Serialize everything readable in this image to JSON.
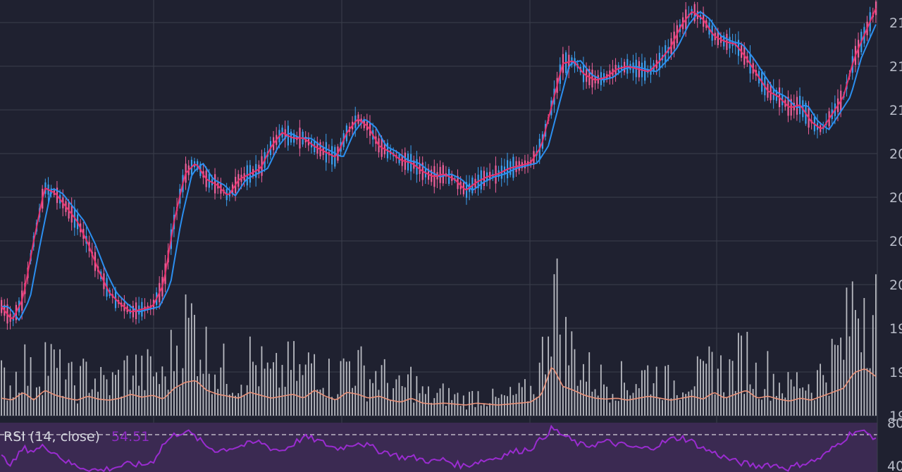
{
  "colors": {
    "background": "#1f2130",
    "grid": "#3b3e4c",
    "candle_up": "#3aa0f0",
    "candle_down": "#f0609a",
    "ma_fast": "#e8326e",
    "ma_slow": "#2b8ff0",
    "volume": "#b9bbc2",
    "volume_ma": "#e8927a",
    "rsi_line": "#9a2cd0",
    "rsi_band": "#3b2a52",
    "rsi_threshold": "#ffffff"
  },
  "price_axis": {
    "ticks": [
      "21",
      "21",
      "21",
      "20",
      "20",
      "20",
      "20",
      "19",
      "19",
      "19"
    ]
  },
  "rsi": {
    "title": "RSI (14, close)",
    "value": "54.51",
    "axis_ticks": [
      "80",
      "40"
    ]
  },
  "chart_data": [
    {
      "type": "line",
      "title": "",
      "series": [
        {
          "values": [
            0.14,
            0.09,
            0.17,
            0.38,
            0.57,
            0.55,
            0.5,
            0.45,
            0.37,
            0.27,
            0.19,
            0.15,
            0.12,
            0.13,
            0.14,
            0.22,
            0.45,
            0.62,
            0.66,
            0.6,
            0.58,
            0.54,
            0.6,
            0.62,
            0.64,
            0.72,
            0.77,
            0.75,
            0.75,
            0.72,
            0.7,
            0.68,
            0.77,
            0.82,
            0.79,
            0.72,
            0.7,
            0.67,
            0.66,
            0.63,
            0.61,
            0.62,
            0.6,
            0.56,
            0.59,
            0.61,
            0.62,
            0.64,
            0.65,
            0.66,
            0.72,
            0.87,
            1.02,
            1.03,
            0.98,
            0.96,
            0.97,
            1.0,
            1.01,
            1.0,
            0.99,
            1.03,
            1.08,
            1.16,
            1.21,
            1.18,
            1.12,
            1.1,
            1.09,
            1.04,
            0.98,
            0.92,
            0.9,
            0.86,
            0.87,
            0.81,
            0.78,
            0.84,
            0.9,
            1.04,
            1.13,
            1.22
          ]
        }
      ]
    },
    {
      "type": "bar",
      "title": "",
      "values": [
        0.12,
        0.1,
        0.18,
        0.1,
        0.2,
        0.15,
        0.12,
        0.1,
        0.14,
        0.11,
        0.1,
        0.12,
        0.16,
        0.13,
        0.15,
        0.11,
        0.22,
        0.28,
        0.3,
        0.2,
        0.16,
        0.14,
        0.12,
        0.18,
        0.15,
        0.12,
        0.14,
        0.16,
        0.12,
        0.2,
        0.14,
        0.1,
        0.18,
        0.16,
        0.12,
        0.14,
        0.1,
        0.08,
        0.12,
        0.07,
        0.06,
        0.07,
        0.06,
        0.05,
        0.07,
        0.06,
        0.05,
        0.06,
        0.07,
        0.08,
        0.15,
        0.45,
        0.24,
        0.2,
        0.15,
        0.12,
        0.11,
        0.12,
        0.1,
        0.12,
        0.14,
        0.12,
        0.1,
        0.12,
        0.14,
        0.11,
        0.18,
        0.12,
        0.16,
        0.2,
        0.12,
        0.14,
        0.11,
        0.09,
        0.12,
        0.1,
        0.14,
        0.18,
        0.22,
        0.38,
        0.42,
        0.34
      ]
    },
    {
      "type": "line",
      "title": "",
      "ylim": [
        40,
        80
      ],
      "values": [
        52,
        46,
        60,
        58,
        62,
        56,
        48,
        44,
        42,
        40,
        42,
        44,
        46,
        45,
        48,
        64,
        72,
        76,
        70,
        62,
        58,
        60,
        62,
        64,
        66,
        60,
        58,
        64,
        70,
        68,
        64,
        60,
        62,
        66,
        62,
        58,
        56,
        52,
        52,
        50,
        48,
        50,
        46,
        44,
        48,
        50,
        52,
        56,
        58,
        60,
        68,
        78,
        72,
        66,
        62,
        64,
        66,
        64,
        62,
        60,
        60,
        64,
        68,
        70,
        66,
        60,
        56,
        52,
        48,
        46,
        44,
        46,
        44,
        42,
        46,
        48,
        52,
        60,
        68,
        76,
        74,
        70
      ]
    }
  ]
}
